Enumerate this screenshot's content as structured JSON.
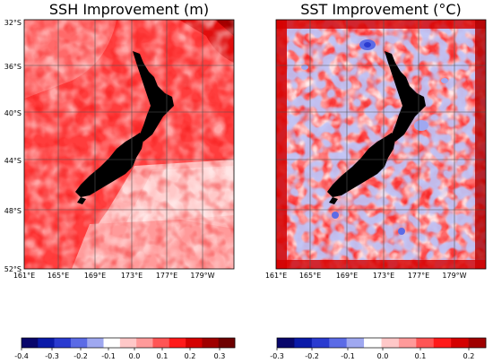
{
  "panels": [
    {
      "title": "SSH Improvement (m)",
      "lat_labels": [
        "32°S",
        "36°S",
        "40°S",
        "44°S",
        "48°S",
        "52°S"
      ],
      "lon_labels": [
        "161°E",
        "165°E",
        "169°E",
        "173°E",
        "177°E",
        "179°W"
      ],
      "colorbar_ticks": [
        "-0.4",
        "-0.3",
        "-0.2",
        "-0.1",
        "0.0",
        "0.1",
        "0.2",
        "0.3"
      ],
      "colorbar_colors": [
        "#08066b",
        "#0a1aa8",
        "#2a3bd0",
        "#5b6be6",
        "#9fa8f0",
        "#ffffff",
        "#ffc8c8",
        "#ff9a9a",
        "#ff5555",
        "#ff1a1a",
        "#d40000",
        "#a00000",
        "#6e0000"
      ]
    },
    {
      "title": "SST Improvement (°C)",
      "lat_labels": [
        "32°S",
        "36°S",
        "40°S",
        "44°S",
        "48°S",
        "52°S"
      ],
      "lon_labels": [
        "161°E",
        "165°E",
        "169°E",
        "173°E",
        "177°E",
        "179°W"
      ],
      "colorbar_ticks": [
        "-0.3",
        "-0.2",
        "-0.1",
        "0.0",
        "0.1",
        "0.2"
      ],
      "colorbar_colors": [
        "#08066b",
        "#0a1aa8",
        "#2a3bd0",
        "#5b6be6",
        "#9fa8f0",
        "#ffffff",
        "#ffc8c8",
        "#ff9a9a",
        "#ff5555",
        "#ff1a1a",
        "#d40000",
        "#a00000"
      ]
    }
  ],
  "chart_data": {
    "type": "heatmap",
    "panels": [
      {
        "title": "SSH Improvement (m)",
        "lat_range": [
          -52,
          -31.5
        ],
        "lon_range": [
          161,
          183
        ],
        "colorbar_range": [
          -0.4,
          0.35
        ]
      },
      {
        "title": "SST Improvement (°C)",
        "lat_range": [
          -52,
          -31.5
        ],
        "lon_range": [
          161,
          183
        ],
        "colorbar_range": [
          -0.3,
          0.25
        ]
      }
    ]
  }
}
